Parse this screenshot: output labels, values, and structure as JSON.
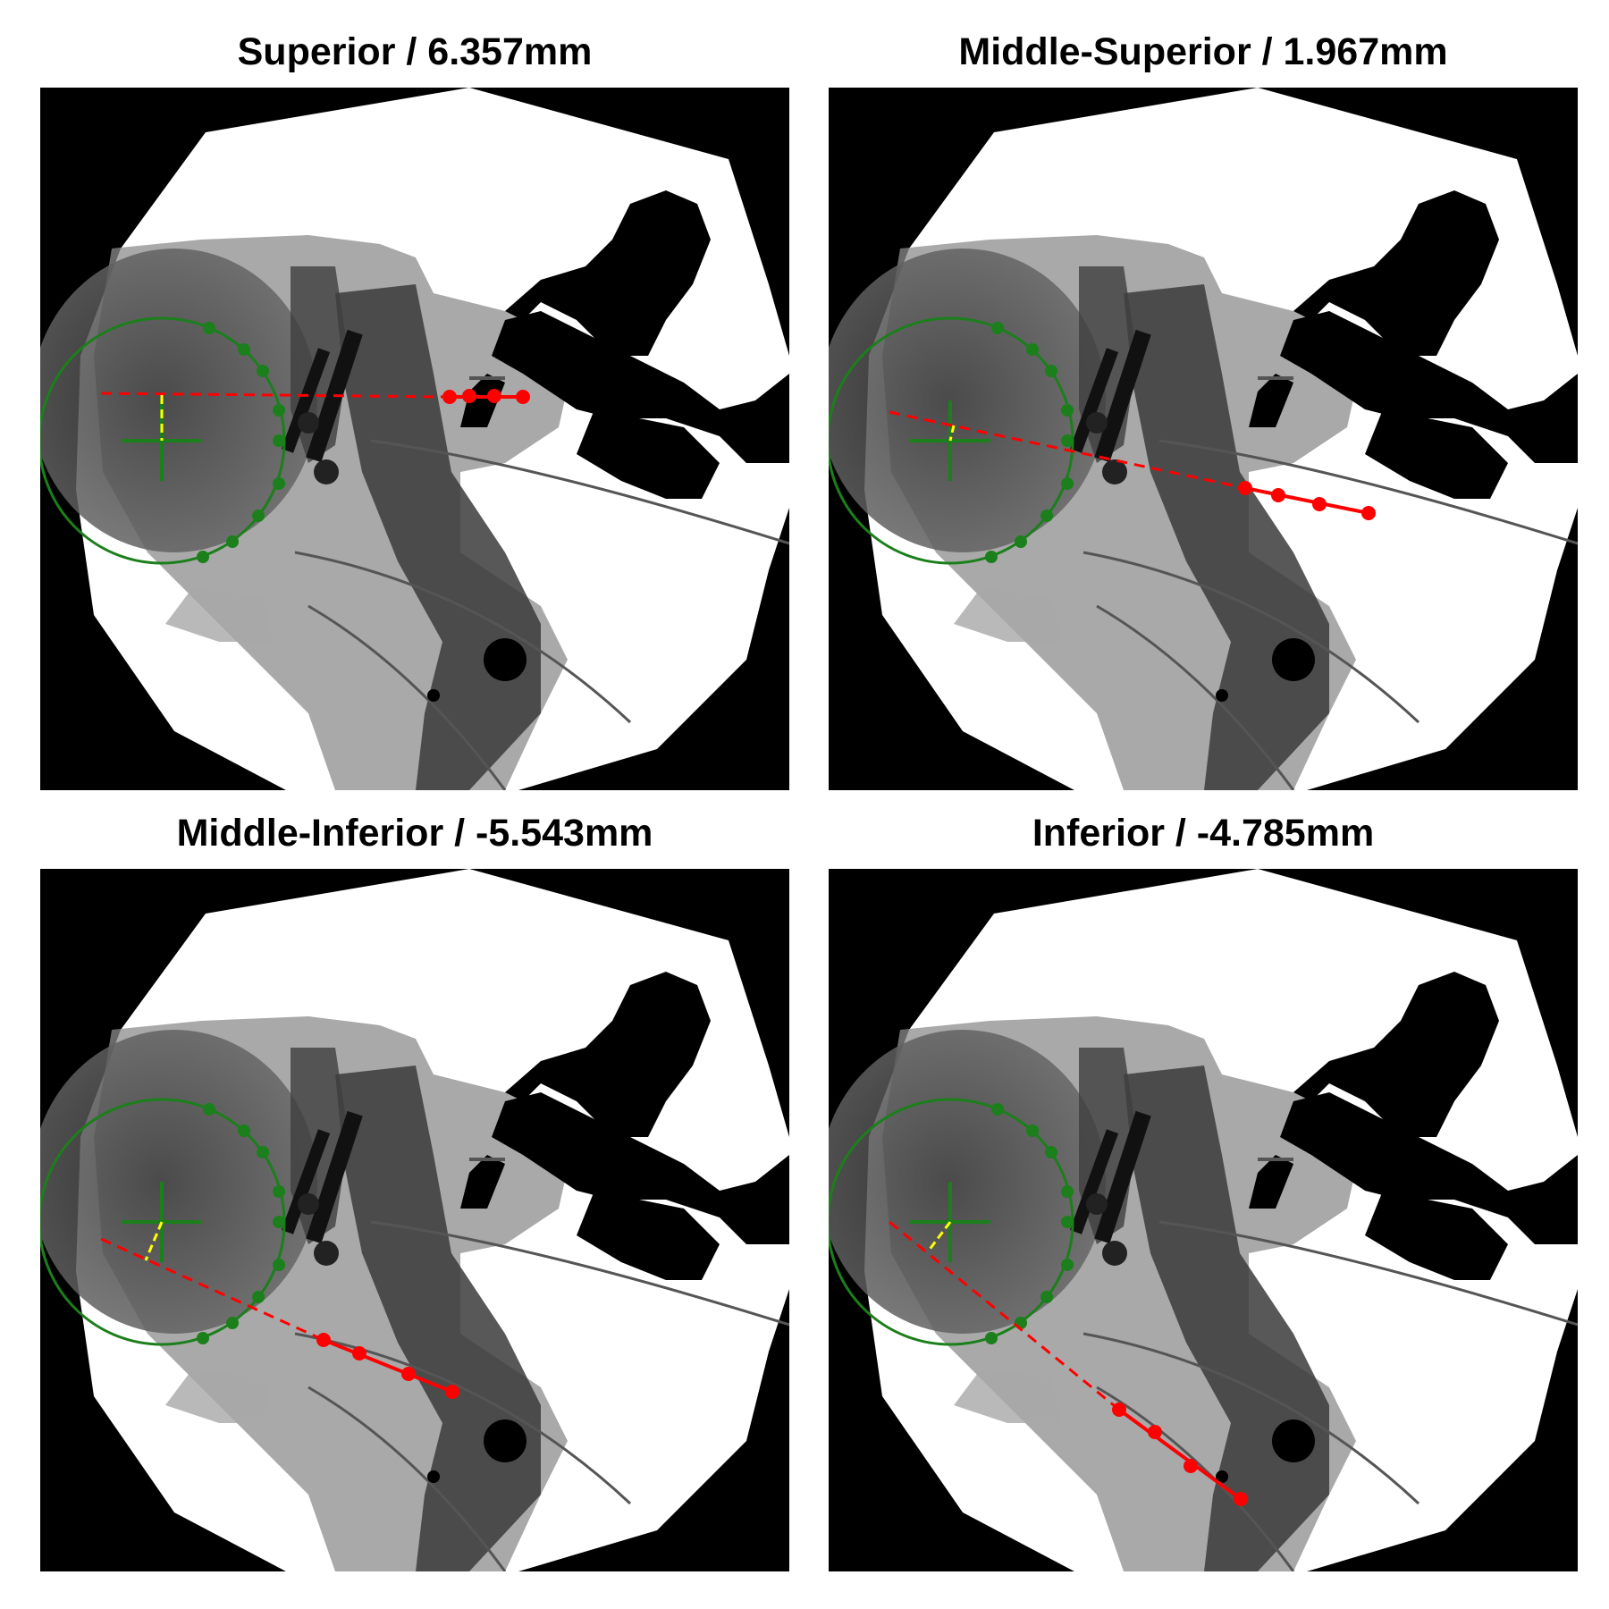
{
  "panels": [
    {
      "title": "Superior / 6.357mm"
    },
    {
      "title": "Middle-Superior / 1.967mm"
    },
    {
      "title": "Middle-Inferior / -5.543mm"
    },
    {
      "title": "Inferior / -4.785mm"
    }
  ],
  "colors": {
    "background": "#000000",
    "field": "#ffffff",
    "circle": "#1b7f1b",
    "trajectory": "#ff0000",
    "offset": "#ffff00"
  }
}
